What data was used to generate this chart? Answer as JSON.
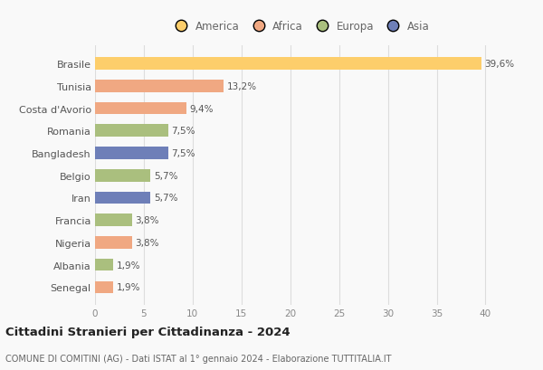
{
  "countries": [
    "Brasile",
    "Tunisia",
    "Costa d'Avorio",
    "Romania",
    "Bangladesh",
    "Belgio",
    "Iran",
    "Francia",
    "Nigeria",
    "Albania",
    "Senegal"
  ],
  "values": [
    39.6,
    13.2,
    9.4,
    7.5,
    7.5,
    5.7,
    5.7,
    3.8,
    3.8,
    1.9,
    1.9
  ],
  "labels": [
    "39,6%",
    "13,2%",
    "9,4%",
    "7,5%",
    "7,5%",
    "5,7%",
    "5,7%",
    "3,8%",
    "3,8%",
    "1,9%",
    "1,9%"
  ],
  "colors": [
    "#FDCE6B",
    "#F0A882",
    "#F0A882",
    "#AABF7E",
    "#6E7FB8",
    "#AABF7E",
    "#6E7FB8",
    "#AABF7E",
    "#F0A882",
    "#AABF7E",
    "#F0A882"
  ],
  "legend_labels": [
    "America",
    "Africa",
    "Europa",
    "Asia"
  ],
  "legend_colors": [
    "#FDCE6B",
    "#F0A882",
    "#AABF7E",
    "#6E7FB8"
  ],
  "xlim": [
    0,
    42
  ],
  "xticks": [
    0,
    5,
    10,
    15,
    20,
    25,
    30,
    35,
    40
  ],
  "title": "Cittadini Stranieri per Cittadinanza - 2024",
  "subtitle": "COMUNE DI COMITINI (AG) - Dati ISTAT al 1° gennaio 2024 - Elaborazione TUTTITALIA.IT",
  "bg_color": "#f9f9f9",
  "bar_height": 0.55
}
